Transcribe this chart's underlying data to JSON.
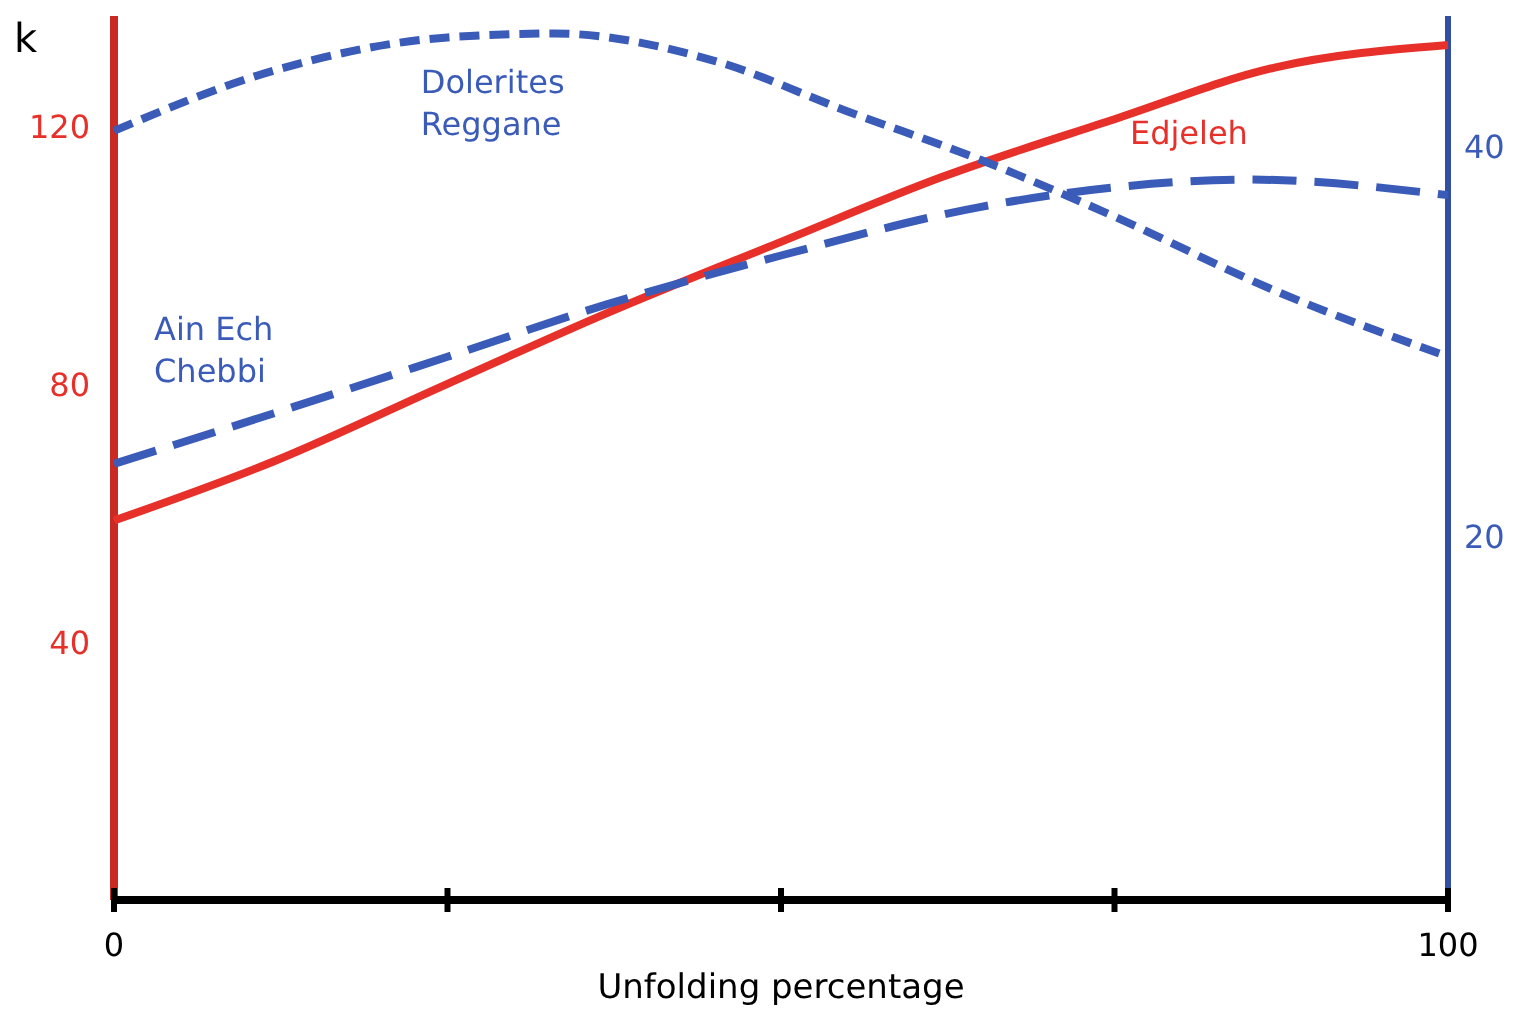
{
  "chart_data": {
    "type": "line",
    "xlabel": "Unfolding percentage",
    "ylabel": "k",
    "xlim": [
      0,
      100
    ],
    "xticks": [
      0,
      {
        "value": 25,
        "label": null
      },
      {
        "value": 50,
        "label": null
      },
      {
        "value": 75,
        "label": null
      },
      100
    ],
    "ylim": [
      0,
      137
    ],
    "yticks": [
      40,
      80,
      120
    ],
    "y2lim": [
      1.3,
      46.7
    ],
    "y2ticks": [
      20,
      40
    ],
    "series": [
      {
        "name": "Edjeleh",
        "color": "#e8302a",
        "line_style": "solid",
        "x": [
          0,
          12,
          25,
          37,
          50,
          62,
          75,
          87,
          100
        ],
        "values": [
          58.8,
          68,
          80,
          91,
          102,
          112,
          121,
          129,
          132.5
        ]
      },
      {
        "name": "Ain Ech Chebbi",
        "color": "#3a5bb8",
        "line_style": "dashed",
        "axis": "y2",
        "x": [
          0,
          12,
          25,
          37,
          50,
          65,
          75,
          85,
          100
        ],
        "values": [
          23.7,
          26.3,
          29.2,
          31.9,
          34.4,
          36.9,
          37.9,
          38.3,
          37.5
        ]
      },
      {
        "name": "Dolerites Reggane",
        "color": "#3a5bb8",
        "line_style": "dashed",
        "axis": "y2",
        "x": [
          0,
          12,
          25,
          33,
          45,
          55,
          65,
          75,
          87,
          100
        ],
        "values": [
          40.8,
          43.9,
          45.6,
          45.8,
          44.4,
          41.8,
          39.3,
          36.4,
          32.6,
          29.2
        ]
      }
    ],
    "grid": false,
    "marker": "none"
  }
}
